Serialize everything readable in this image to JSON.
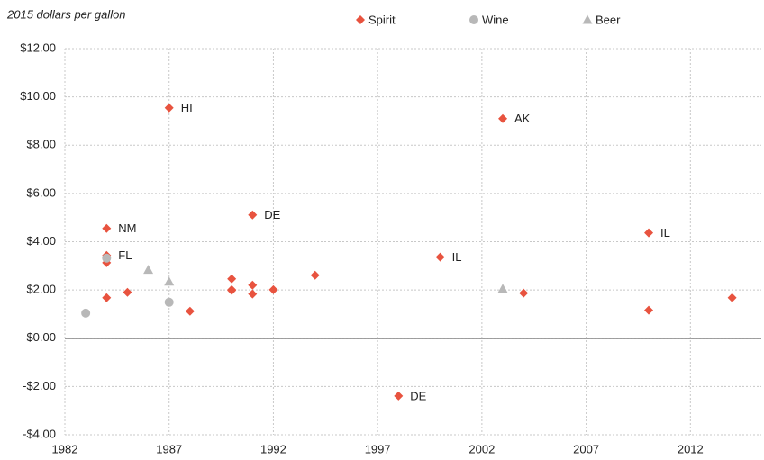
{
  "chart_data": {
    "type": "scatter",
    "y_axis_label": "2015 dollars per gallon",
    "xlim": [
      1982,
      2015.4
    ],
    "xticks": [
      1982,
      1987,
      1992,
      1997,
      2002,
      2007,
      2012
    ],
    "ylim": [
      -4,
      12
    ],
    "yticks": [
      {
        "value": -4,
        "label": "-$4.00"
      },
      {
        "value": -2,
        "label": "-$2.00"
      },
      {
        "value": 0,
        "label": "$0.00"
      },
      {
        "value": 2,
        "label": "$2.00"
      },
      {
        "value": 4,
        "label": "$4.00"
      },
      {
        "value": 6,
        "label": "$6.00"
      },
      {
        "value": 8,
        "label": "$8.00"
      },
      {
        "value": 10,
        "label": "$10.00"
      },
      {
        "value": 12,
        "label": "$12.00"
      }
    ],
    "grid": true,
    "series": [
      {
        "name": "Spirit",
        "color": "#e8533f",
        "marker": "diamond",
        "x": [
          1984,
          1984,
          1984,
          1984,
          1985,
          1987,
          1988,
          1990,
          1990,
          1990,
          1991,
          1991,
          1991,
          1992,
          1994,
          1998,
          2000,
          2003,
          2004,
          2010,
          2010,
          2014
        ],
        "values": [
          4.55,
          3.43,
          3.13,
          1.68,
          1.9,
          9.55,
          1.12,
          2.46,
          2.01,
          1.98,
          5.11,
          2.2,
          1.83,
          2.01,
          2.61,
          -2.39,
          3.36,
          9.1,
          1.87,
          4.37,
          1.16,
          1.68
        ],
        "labels": [
          "NM",
          "FL",
          null,
          null,
          null,
          "HI",
          null,
          null,
          null,
          null,
          "DE",
          null,
          null,
          null,
          null,
          "DE",
          "IL",
          "AK",
          null,
          "IL",
          null,
          null
        ]
      },
      {
        "name": "Wine",
        "color": "#b8b8b8",
        "marker": "circle",
        "x": [
          1983,
          1984,
          1987
        ],
        "values": [
          1.04,
          3.32,
          1.49
        ]
      },
      {
        "name": "Beer",
        "color": "#b8b8b8",
        "marker": "triangle",
        "x": [
          1986,
          1987,
          2003
        ],
        "values": [
          2.84,
          2.35,
          2.05
        ]
      }
    ]
  }
}
